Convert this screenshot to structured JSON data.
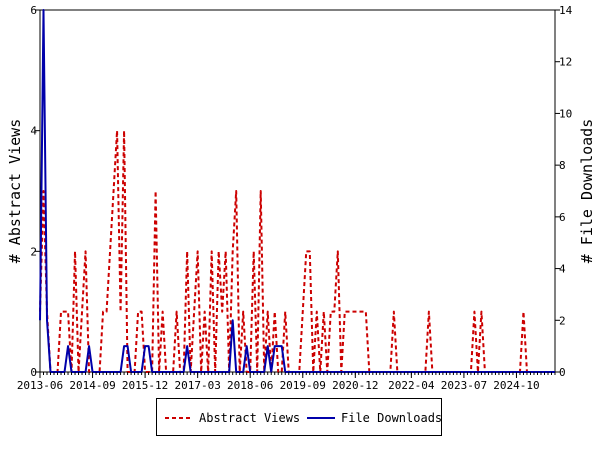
{
  "chart_data": {
    "type": "line",
    "title": "",
    "xlabel": "",
    "ylabel": "# Abstract Views",
    "y2label": "# File Downloads",
    "xlim": [
      "2013-06",
      "2025-09"
    ],
    "ylim": [
      0,
      6
    ],
    "y2lim": [
      0,
      14
    ],
    "x_tick_labels": [
      "2013-06",
      "2014-09",
      "2015-12",
      "2017-03",
      "2018-06",
      "2019-09",
      "2020-12",
      "2022-04",
      "2023-07",
      "2024-10"
    ],
    "y_ticks": [
      "0",
      "2",
      "4",
      "6"
    ],
    "y2_ticks": [
      "0",
      "2",
      "4",
      "6",
      "8",
      "10",
      "12",
      "14"
    ],
    "grid": false,
    "legend_position": "bottom",
    "colors": {
      "abstract_views": "#cc0000",
      "file_downloads": "#0000aa"
    },
    "series": [
      {
        "name": "Abstract Views",
        "axis": "left",
        "style": "dashed",
        "points": [
          [
            "2013-06",
            1
          ],
          [
            "2013-07",
            3
          ],
          [
            "2013-08",
            1
          ],
          [
            "2013-09",
            0
          ],
          [
            "2013-10",
            0
          ],
          [
            "2013-11",
            0
          ],
          [
            "2013-12",
            1
          ],
          [
            "2014-01",
            1
          ],
          [
            "2014-02",
            1
          ],
          [
            "2014-03",
            0
          ],
          [
            "2014-04",
            2
          ],
          [
            "2014-05",
            0
          ],
          [
            "2014-06",
            1
          ],
          [
            "2014-07",
            2
          ],
          [
            "2014-08",
            0
          ],
          [
            "2014-09",
            0
          ],
          [
            "2014-10",
            0
          ],
          [
            "2014-11",
            0
          ],
          [
            "2014-12",
            1
          ],
          [
            "2015-01",
            1
          ],
          [
            "2015-02",
            2
          ],
          [
            "2015-03",
            3
          ],
          [
            "2015-04",
            4
          ],
          [
            "2015-05",
            1
          ],
          [
            "2015-06",
            4
          ],
          [
            "2015-07",
            0
          ],
          [
            "2015-08",
            0
          ],
          [
            "2015-09",
            0
          ],
          [
            "2015-10",
            1
          ],
          [
            "2015-11",
            1
          ],
          [
            "2015-12",
            0
          ],
          [
            "2016-01",
            0
          ],
          [
            "2016-02",
            0
          ],
          [
            "2016-03",
            3
          ],
          [
            "2016-04",
            0
          ],
          [
            "2016-05",
            1
          ],
          [
            "2016-06",
            0
          ],
          [
            "2016-07",
            0
          ],
          [
            "2016-08",
            0
          ],
          [
            "2016-09",
            1
          ],
          [
            "2016-10",
            0
          ],
          [
            "2016-11",
            0
          ],
          [
            "2016-12",
            2
          ],
          [
            "2017-01",
            0
          ],
          [
            "2017-02",
            1
          ],
          [
            "2017-03",
            2
          ],
          [
            "2017-04",
            0
          ],
          [
            "2017-05",
            1
          ],
          [
            "2017-06",
            0
          ],
          [
            "2017-07",
            2
          ],
          [
            "2017-08",
            0
          ],
          [
            "2017-09",
            2
          ],
          [
            "2017-10",
            1
          ],
          [
            "2017-11",
            2
          ],
          [
            "2017-12",
            0
          ],
          [
            "2018-01",
            2
          ],
          [
            "2018-02",
            3
          ],
          [
            "2018-03",
            0
          ],
          [
            "2018-04",
            1
          ],
          [
            "2018-05",
            0
          ],
          [
            "2018-06",
            0
          ],
          [
            "2018-07",
            2
          ],
          [
            "2018-08",
            0
          ],
          [
            "2018-09",
            3
          ],
          [
            "2018-10",
            0
          ],
          [
            "2018-11",
            1
          ],
          [
            "2018-12",
            0
          ],
          [
            "2019-01",
            1
          ],
          [
            "2019-02",
            0
          ],
          [
            "2019-03",
            0
          ],
          [
            "2019-04",
            1
          ],
          [
            "2019-05",
            0
          ],
          [
            "2019-06",
            0
          ],
          [
            "2019-07",
            0
          ],
          [
            "2019-08",
            0
          ],
          [
            "2019-09",
            1
          ],
          [
            "2019-10",
            2
          ],
          [
            "2019-11",
            2
          ],
          [
            "2019-12",
            0
          ],
          [
            "2020-01",
            1
          ],
          [
            "2020-02",
            0
          ],
          [
            "2020-03",
            1
          ],
          [
            "2020-04",
            0
          ],
          [
            "2020-05",
            1
          ],
          [
            "2020-06",
            1
          ],
          [
            "2020-07",
            2
          ],
          [
            "2020-08",
            0
          ],
          [
            "2020-09",
            1
          ],
          [
            "2020-10",
            1
          ],
          [
            "2021-03",
            1
          ],
          [
            "2021-04",
            0
          ],
          [
            "2021-10",
            0
          ],
          [
            "2021-11",
            1
          ],
          [
            "2021-12",
            0
          ],
          [
            "2022-08",
            0
          ],
          [
            "2022-09",
            1
          ],
          [
            "2022-10",
            0
          ],
          [
            "2023-09",
            0
          ],
          [
            "2023-10",
            1
          ],
          [
            "2023-11",
            0
          ],
          [
            "2023-12",
            1
          ],
          [
            "2024-01",
            0
          ],
          [
            "2024-11",
            0
          ],
          [
            "2024-12",
            1
          ],
          [
            "2025-01",
            0
          ],
          [
            "2025-09",
            0
          ]
        ]
      },
      {
        "name": "File Downloads",
        "axis": "right",
        "style": "solid",
        "points": [
          [
            "2013-06",
            2
          ],
          [
            "2013-07",
            14
          ],
          [
            "2013-08",
            2
          ],
          [
            "2013-09",
            0
          ],
          [
            "2013-10",
            0
          ],
          [
            "2014-01",
            0
          ],
          [
            "2014-02",
            1
          ],
          [
            "2014-03",
            0
          ],
          [
            "2014-07",
            0
          ],
          [
            "2014-08",
            1
          ],
          [
            "2014-09",
            0
          ],
          [
            "2015-05",
            0
          ],
          [
            "2015-06",
            1
          ],
          [
            "2015-07",
            1
          ],
          [
            "2015-08",
            0
          ],
          [
            "2015-11",
            0
          ],
          [
            "2015-12",
            1
          ],
          [
            "2016-01",
            1
          ],
          [
            "2016-02",
            0
          ],
          [
            "2016-11",
            0
          ],
          [
            "2016-12",
            1
          ],
          [
            "2017-01",
            0
          ],
          [
            "2017-12",
            0
          ],
          [
            "2018-01",
            2
          ],
          [
            "2018-02",
            0
          ],
          [
            "2018-04",
            0
          ],
          [
            "2018-05",
            1
          ],
          [
            "2018-06",
            0
          ],
          [
            "2018-10",
            0
          ],
          [
            "2018-11",
            1
          ],
          [
            "2018-12",
            0
          ],
          [
            "2019-01",
            1
          ],
          [
            "2019-02",
            1
          ],
          [
            "2019-03",
            1
          ],
          [
            "2019-04",
            0
          ],
          [
            "2025-09",
            0
          ]
        ]
      }
    ]
  }
}
